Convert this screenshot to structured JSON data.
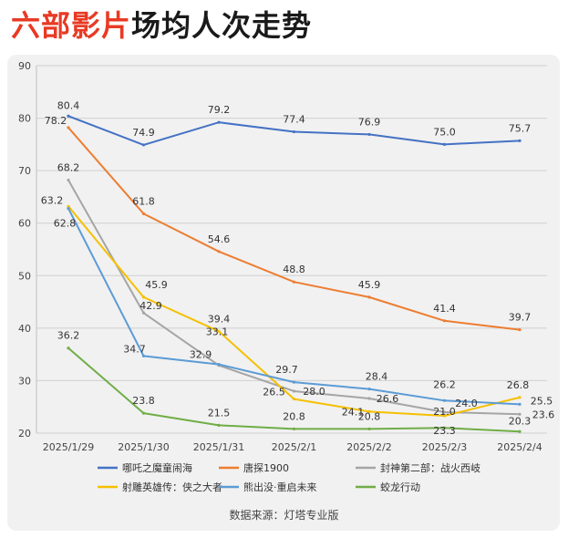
{
  "header": {
    "title_highlight": "六部影片",
    "title_rest": "场均人次走势"
  },
  "footer": {
    "source": "数据来源：灯塔专业版"
  },
  "chart_data": {
    "type": "line",
    "title": "",
    "xlabel": "",
    "ylabel": "",
    "categories": [
      "2025/1/29",
      "2025/1/30",
      "2025/1/31",
      "2025/2/1",
      "2025/2/2",
      "2025/2/3",
      "2025/2/4"
    ],
    "ylim": [
      20,
      90
    ],
    "yticks": [
      20,
      30,
      40,
      50,
      60,
      70,
      80,
      90
    ],
    "grid": true,
    "legend_position": "bottom",
    "series": [
      {
        "name": "哪吒之魔童闹海",
        "color": "#4472c4",
        "values": [
          80.4,
          74.9,
          79.2,
          77.4,
          76.9,
          75.0,
          75.7
        ]
      },
      {
        "name": "唐探1900",
        "color": "#ed7d31",
        "values": [
          78.2,
          61.8,
          54.6,
          48.8,
          45.9,
          41.4,
          39.7
        ]
      },
      {
        "name": "封神第二部：战火西岐",
        "color": "#a5a5a5",
        "values": [
          68.2,
          42.9,
          32.9,
          28.0,
          26.6,
          24.0,
          23.6
        ]
      },
      {
        "name": "射雕英雄传：侠之大者",
        "color": "#f5c000",
        "values": [
          63.2,
          45.9,
          39.4,
          26.5,
          24.1,
          23.3,
          26.8
        ]
      },
      {
        "name": "熊出没·重启未来",
        "color": "#5b9bd5",
        "values": [
          62.8,
          34.7,
          33.1,
          29.7,
          28.4,
          26.2,
          25.5
        ]
      },
      {
        "name": "蛟龙行动",
        "color": "#70ad47",
        "values": [
          36.2,
          23.8,
          21.5,
          20.8,
          20.8,
          21.0,
          20.3
        ]
      }
    ]
  }
}
